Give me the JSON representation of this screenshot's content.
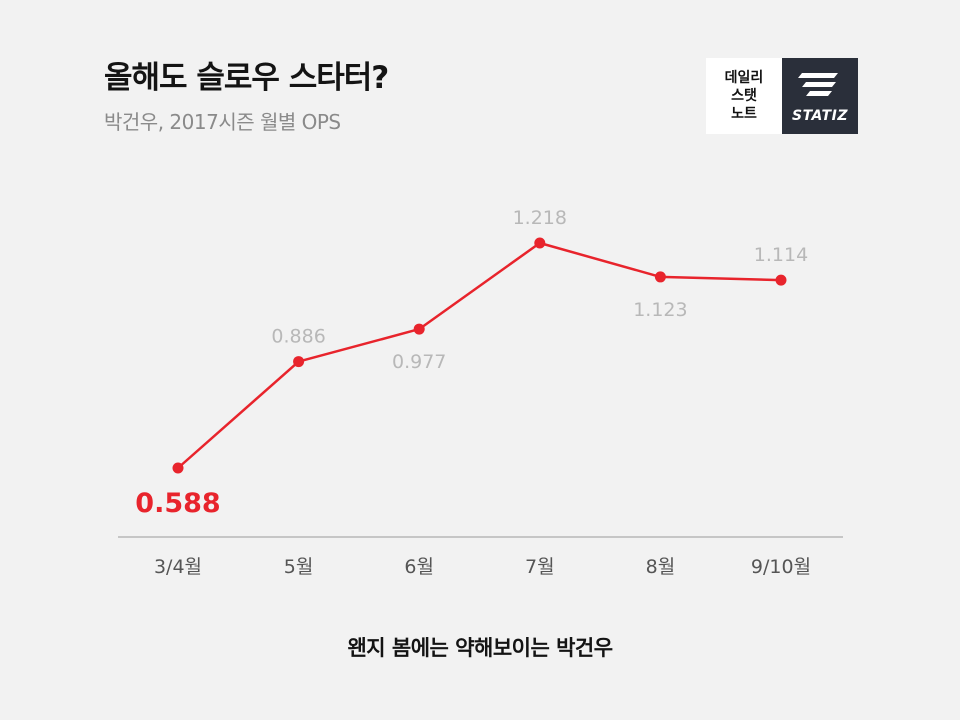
{
  "header": {
    "title": "올해도 슬로우 스타터?",
    "subtitle": "박건우, 2017시즌 월별 OPS"
  },
  "logo": {
    "lines": [
      "데일리",
      "스탯",
      "노트"
    ],
    "brand": "STATIZ"
  },
  "caption": "왠지 봄에는 약해보이는 박건우",
  "colors": {
    "line": "#e8242c",
    "highlight_label": "#e8242c",
    "value_label": "#b8b8b8",
    "tick_label": "#555555",
    "axis": "#999999"
  },
  "chart_data": {
    "type": "line",
    "title": "올해도 슬로우 스타터?",
    "subtitle": "박건우, 2017시즌 월별 OPS",
    "categories": [
      "3/4월",
      "5월",
      "6월",
      "7월",
      "8월",
      "9/10월"
    ],
    "values": [
      0.588,
      0.886,
      0.977,
      1.218,
      1.123,
      1.114
    ],
    "value_labels": [
      "0.588",
      "0.886",
      "0.977",
      "1.218",
      "1.123",
      "1.114"
    ],
    "label_positions": [
      "below",
      "above",
      "below",
      "above",
      "below",
      "above"
    ],
    "highlighted_index": 0,
    "ylim": [
      0.3,
      1.4
    ],
    "grid": false,
    "xlabel": "",
    "ylabel": ""
  }
}
